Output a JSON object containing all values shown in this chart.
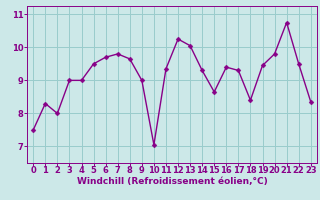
{
  "x": [
    0,
    1,
    2,
    3,
    4,
    5,
    6,
    7,
    8,
    9,
    10,
    11,
    12,
    13,
    14,
    15,
    16,
    17,
    18,
    19,
    20,
    21,
    22,
    23
  ],
  "y": [
    7.5,
    8.3,
    8.0,
    9.0,
    9.0,
    9.5,
    9.7,
    9.8,
    9.65,
    9.0,
    7.05,
    9.35,
    10.25,
    10.05,
    9.3,
    8.65,
    9.4,
    9.3,
    8.4,
    9.45,
    9.8,
    10.75,
    9.5,
    8.35
  ],
  "line_color": "#880088",
  "marker_color": "#880088",
  "bg_color": "#cce8e8",
  "grid_color": "#99cccc",
  "xlabel": "Windchill (Refroidissement éolien,°C)",
  "xlim": [
    -0.5,
    23.5
  ],
  "ylim": [
    6.5,
    11.25
  ],
  "yticks": [
    7,
    8,
    9,
    10,
    11
  ],
  "xticks": [
    0,
    1,
    2,
    3,
    4,
    5,
    6,
    7,
    8,
    9,
    10,
    11,
    12,
    13,
    14,
    15,
    16,
    17,
    18,
    19,
    20,
    21,
    22,
    23
  ],
  "label_fontsize": 6.5,
  "tick_fontsize": 6.0,
  "marker_size": 2.5,
  "line_width": 1.0
}
